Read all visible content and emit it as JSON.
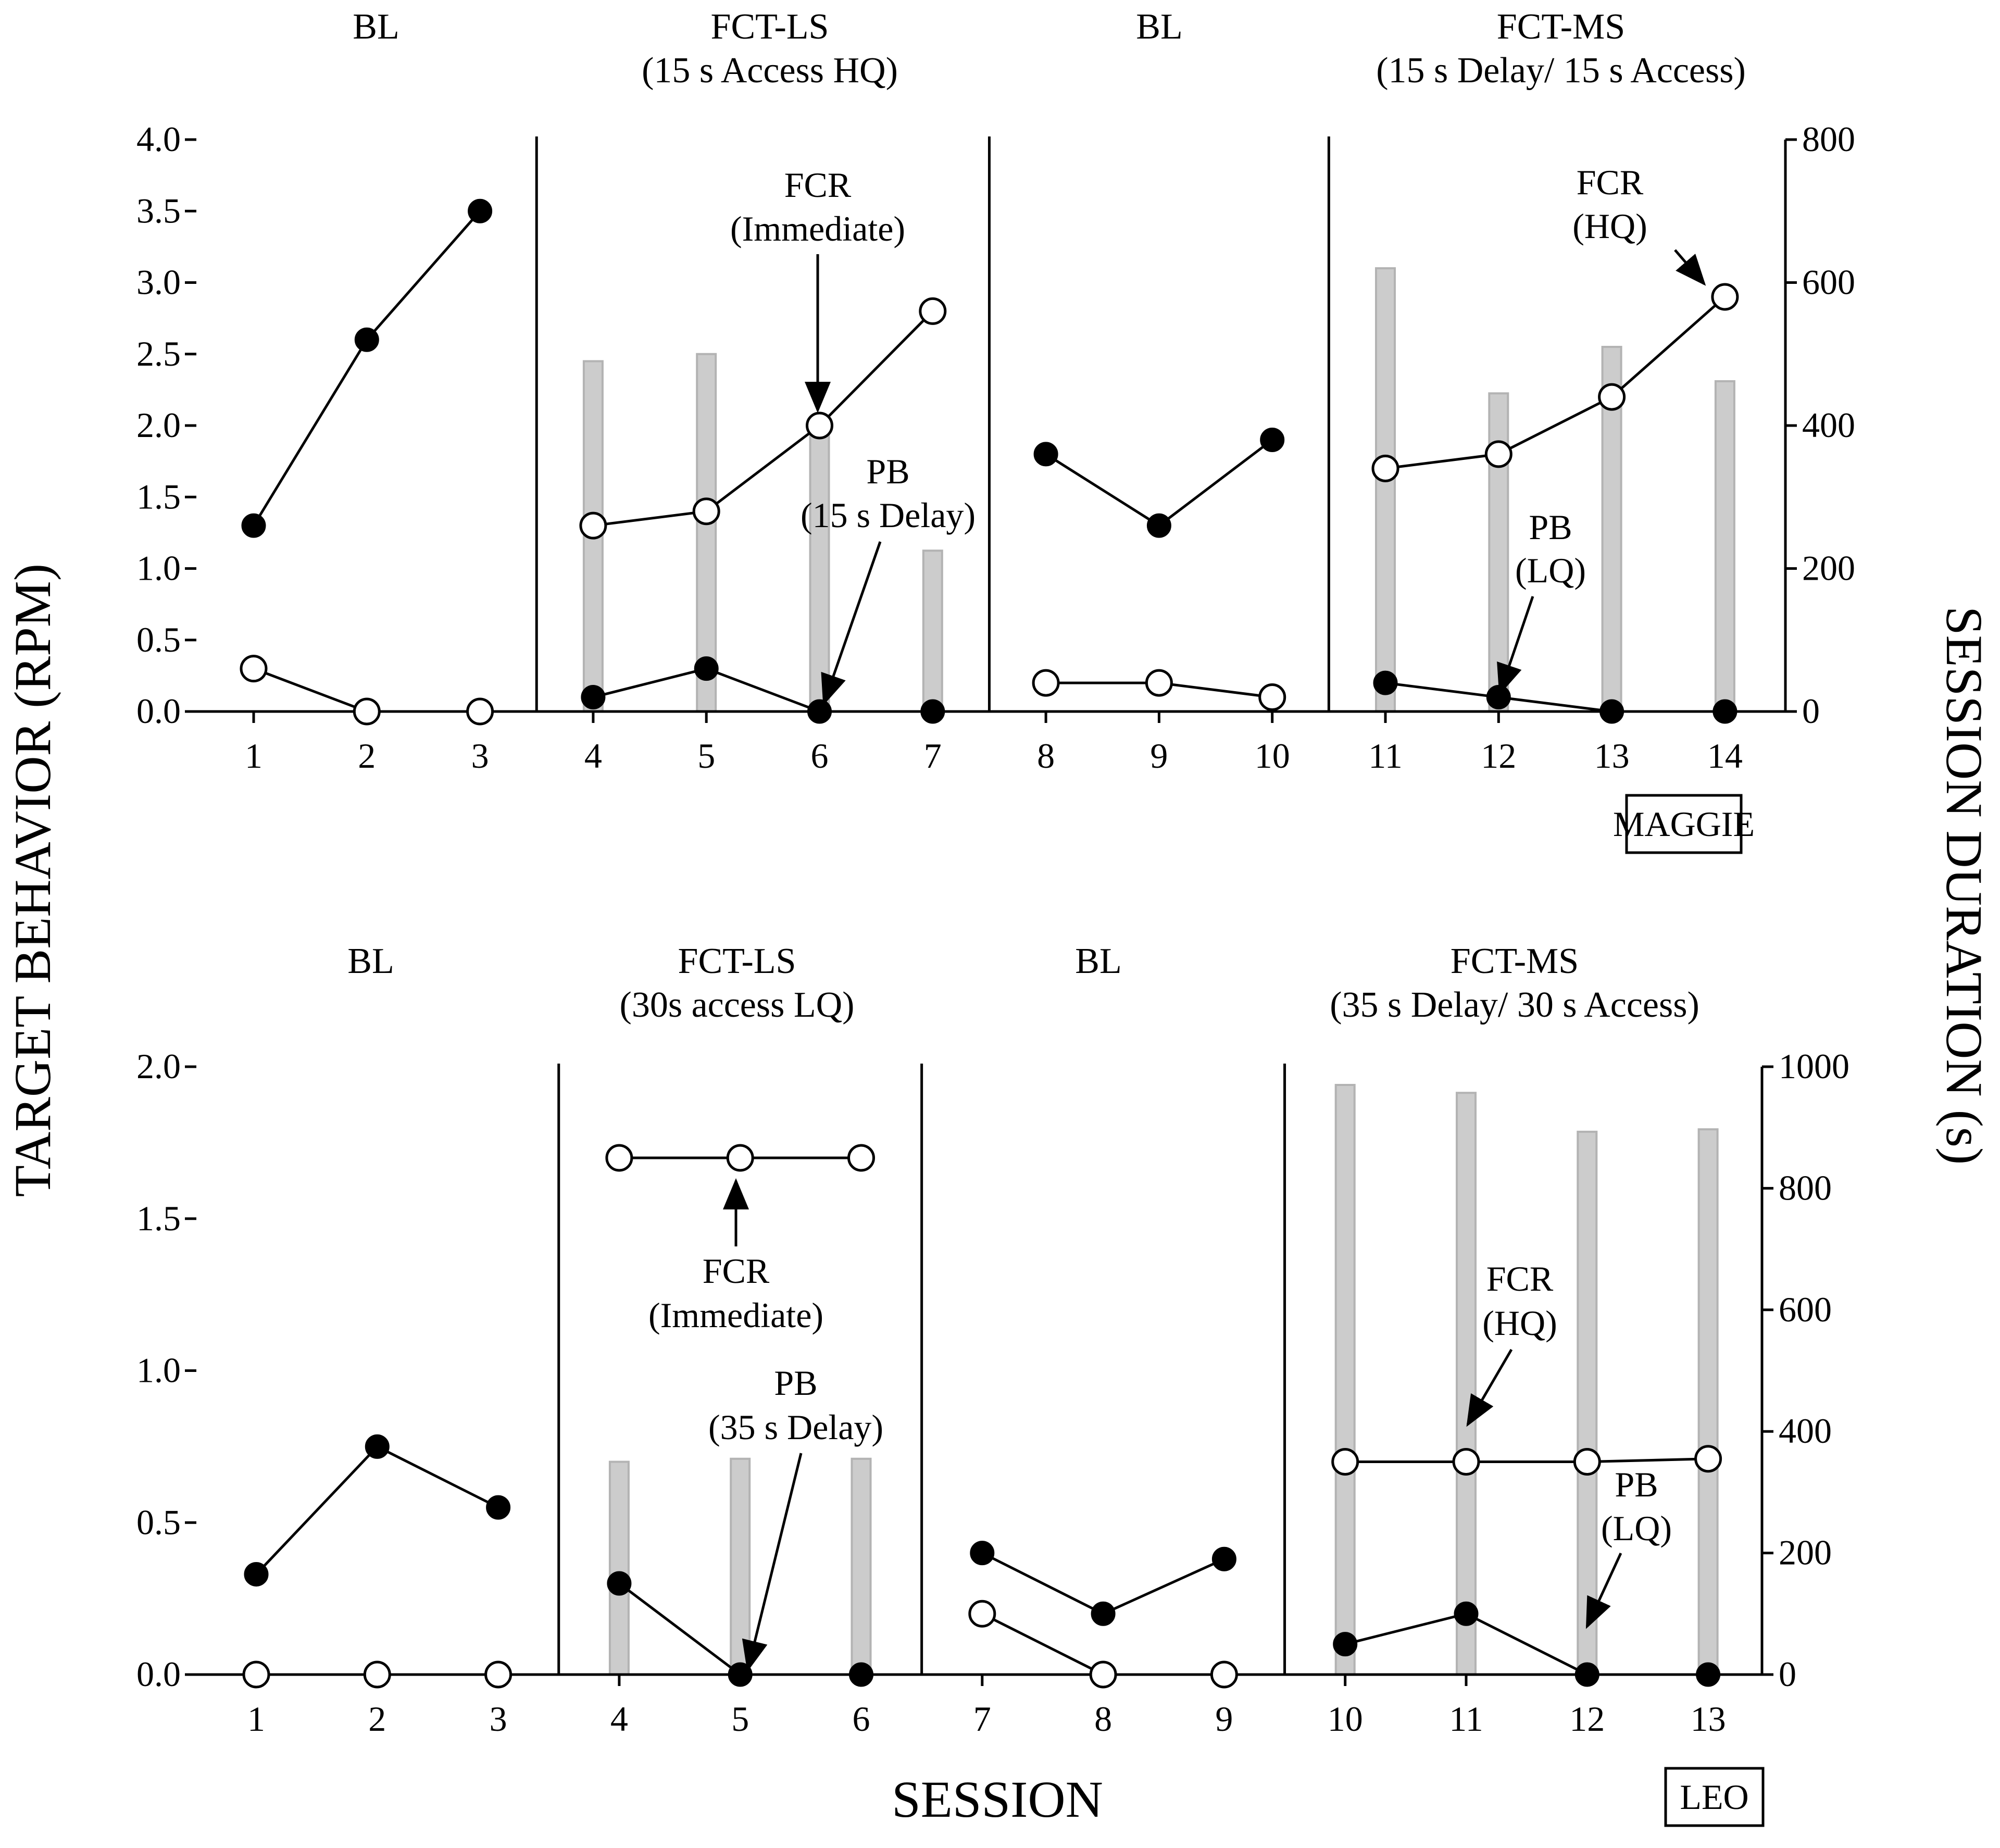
{
  "axis_titles": {
    "x": "SESSION",
    "y_left": "TARGET BEHAVIOR (RPM)",
    "y_right": "SESSION DURATION (s)"
  },
  "colors": {
    "bar_fill": "#cccccc",
    "bar_stroke": "#b3b3b3",
    "ink": "#000000",
    "open_fill": "#ffffff"
  },
  "chart_data": [
    {
      "type": "line",
      "participant": "MAGGIE",
      "x": [
        1,
        2,
        3,
        4,
        5,
        6,
        7,
        8,
        9,
        10,
        11,
        12,
        13,
        14
      ],
      "x_tick_labels": [
        "1",
        "2",
        "3",
        "4",
        "5",
        "6",
        "7",
        "8",
        "9",
        "10",
        "11",
        "12",
        "13",
        "14"
      ],
      "ylim": [
        0,
        4.0
      ],
      "y_ticks": [
        0,
        0.5,
        1.0,
        1.5,
        2.0,
        2.5,
        3.0,
        3.5,
        4.0
      ],
      "y_tick_labels": [
        "0.0",
        "0.5",
        "1.0",
        "1.5",
        "2.0",
        "2.5",
        "3.0",
        "3.5",
        "4.0"
      ],
      "y2lim": [
        0,
        800
      ],
      "y2_ticks": [
        0,
        200,
        400,
        600,
        800
      ],
      "y2_tick_labels": [
        "0",
        "200",
        "400",
        "600",
        "800"
      ],
      "phase_lines_after": [
        3,
        7,
        10
      ],
      "phases": [
        {
          "lines": [
            "BL"
          ],
          "sessions": [
            1,
            3
          ]
        },
        {
          "lines": [
            "FCT-LS",
            "(15 s Access HQ)"
          ],
          "sessions": [
            4,
            7
          ]
        },
        {
          "lines": [
            "BL"
          ],
          "sessions": [
            8,
            10
          ]
        },
        {
          "lines": [
            "FCT-MS",
            "(15 s Delay/ 15 s Access)"
          ],
          "sessions": [
            11,
            14
          ]
        }
      ],
      "series": [
        {
          "name": "Target behavior (closed)",
          "marker": "closed",
          "segments": [
            {
              "x": [
                1,
                2,
                3
              ],
              "values": [
                1.3,
                2.6,
                3.5
              ]
            },
            {
              "x": [
                4,
                5,
                6,
                7
              ],
              "values": [
                0.1,
                0.3,
                0.0,
                0.0
              ]
            },
            {
              "x": [
                8,
                9,
                10
              ],
              "values": [
                1.8,
                1.3,
                1.9
              ]
            },
            {
              "x": [
                11,
                12,
                13,
                14
              ],
              "values": [
                0.2,
                0.1,
                0.0,
                0.0
              ]
            }
          ]
        },
        {
          "name": "FCR (open)",
          "marker": "open",
          "segments": [
            {
              "x": [
                1,
                2,
                3
              ],
              "values": [
                0.3,
                0.0,
                0.0
              ]
            },
            {
              "x": [
                4,
                5,
                6,
                7
              ],
              "values": [
                1.3,
                1.4,
                2.0,
                2.8
              ]
            },
            {
              "x": [
                8,
                9,
                10
              ],
              "values": [
                0.2,
                0.2,
                0.1
              ]
            },
            {
              "x": [
                11,
                12,
                13,
                14
              ],
              "values": [
                1.7,
                1.8,
                2.2,
                2.9
              ]
            }
          ]
        }
      ],
      "bars": {
        "name": "Session duration (s)",
        "x": [
          4,
          5,
          6,
          7,
          11,
          12,
          13,
          14
        ],
        "values": [
          490,
          500,
          390,
          225,
          620,
          445,
          510,
          462
        ]
      },
      "annotations": [
        {
          "lines": [
            "FCR",
            "(Immediate)"
          ]
        },
        {
          "lines": [
            "PB",
            "(15 s Delay)"
          ]
        },
        {
          "lines": [
            "FCR",
            "(HQ)"
          ]
        },
        {
          "lines": [
            "PB",
            "(LQ)"
          ]
        }
      ]
    },
    {
      "type": "line",
      "participant": "LEO",
      "x": [
        1,
        2,
        3,
        4,
        5,
        6,
        7,
        8,
        9,
        10,
        11,
        12,
        13
      ],
      "x_tick_labels": [
        "1",
        "2",
        "3",
        "4",
        "5",
        "6",
        "7",
        "8",
        "9",
        "10",
        "11",
        "12",
        "13"
      ],
      "ylim": [
        0,
        2.0
      ],
      "y_ticks": [
        0,
        0.5,
        1.0,
        1.5,
        2.0
      ],
      "y_tick_labels": [
        "0.0",
        "0.5",
        "1.0",
        "1.5",
        "2.0"
      ],
      "y2lim": [
        0,
        1000
      ],
      "y2_ticks": [
        0,
        200,
        400,
        600,
        800,
        1000
      ],
      "y2_tick_labels": [
        "0",
        "200",
        "400",
        "600",
        "800",
        "1000"
      ],
      "phase_lines_after": [
        3,
        6,
        9
      ],
      "phases": [
        {
          "lines": [
            "BL"
          ],
          "sessions": [
            1,
            3
          ]
        },
        {
          "lines": [
            "FCT-LS",
            "(30s access LQ)"
          ],
          "sessions": [
            4,
            6
          ]
        },
        {
          "lines": [
            "BL"
          ],
          "sessions": [
            7,
            9
          ]
        },
        {
          "lines": [
            "FCT-MS",
            "(35 s Delay/ 30 s Access)"
          ],
          "sessions": [
            10,
            13
          ]
        }
      ],
      "series": [
        {
          "name": "Target behavior (closed)",
          "marker": "closed",
          "segments": [
            {
              "x": [
                1,
                2,
                3
              ],
              "values": [
                0.33,
                0.75,
                0.55
              ]
            },
            {
              "x": [
                4,
                5,
                6
              ],
              "values": [
                0.3,
                0.0,
                0.0
              ]
            },
            {
              "x": [
                7,
                8,
                9
              ],
              "values": [
                0.4,
                0.2,
                0.38
              ]
            },
            {
              "x": [
                10,
                11,
                12,
                13
              ],
              "values": [
                0.1,
                0.2,
                0.0,
                0.0
              ]
            }
          ]
        },
        {
          "name": "FCR (open)",
          "marker": "open",
          "segments": [
            {
              "x": [
                1,
                2,
                3
              ],
              "values": [
                0.0,
                0.0,
                0.0
              ]
            },
            {
              "x": [
                4,
                5,
                6
              ],
              "values": [
                1.7,
                1.7,
                1.7
              ]
            },
            {
              "x": [
                7,
                8,
                9
              ],
              "values": [
                0.2,
                0.0,
                0.0
              ]
            },
            {
              "x": [
                10,
                11,
                12,
                13
              ],
              "values": [
                0.7,
                0.7,
                0.7,
                0.71
              ]
            }
          ]
        }
      ],
      "bars": {
        "name": "Session duration (s)",
        "x": [
          4,
          5,
          6,
          10,
          11,
          12,
          13
        ],
        "values": [
          350,
          355,
          355,
          970,
          957,
          893,
          897
        ]
      },
      "annotations": [
        {
          "lines": [
            "FCR",
            "(Immediate)"
          ]
        },
        {
          "lines": [
            "PB",
            "(35 s Delay)"
          ]
        },
        {
          "lines": [
            "FCR",
            "(HQ)"
          ]
        },
        {
          "lines": [
            "PB",
            "(LQ)"
          ]
        }
      ]
    }
  ]
}
